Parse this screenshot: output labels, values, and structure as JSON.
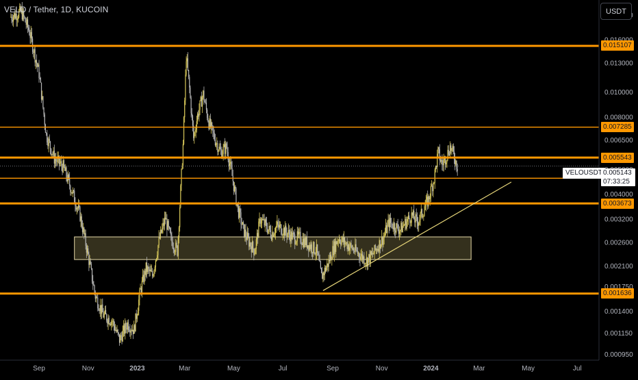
{
  "header": {
    "title": "VELO / Tether, 1D, KUCOIN"
  },
  "currency_button": {
    "label": "USDT"
  },
  "current_price": {
    "symbol": "VELOUSDT",
    "value": "0.005143",
    "countdown": "07:33:25"
  },
  "colors": {
    "background": "#000000",
    "candle_up": "#d9c95a",
    "candle_down": "#b7b7b7",
    "level": "#ff9800",
    "trendline": "#e8d77a",
    "zone_fill": "#3a3520",
    "zone_border": "#e6d9a8",
    "axis_text": "#b2b5be"
  },
  "chart_data": {
    "type": "candlestick",
    "title": "VELO / Tether, 1D, KUCOIN",
    "scale": "log",
    "ylim": [
      0.0009,
      0.0228
    ],
    "x_ticks": [
      "Sep",
      "Nov",
      "2023",
      "Mar",
      "May",
      "Jul",
      "Sep",
      "Nov",
      "2024",
      "Mar",
      "May",
      "Jul"
    ],
    "y_ticks": [
      "0.020000",
      "0.016000",
      "0.013000",
      "0.010000",
      "0.008000",
      "0.006500",
      "0.005000",
      "0.004000",
      "0.003200",
      "0.002600",
      "0.002100",
      "0.001750",
      "0.001400",
      "0.001150",
      "0.000950"
    ],
    "horizontal_levels": [
      {
        "label": "0.015107",
        "value": 0.015107,
        "weight": "thick"
      },
      {
        "label": "0.007285",
        "value": 0.007285,
        "weight": "thin"
      },
      {
        "label": "0.005543",
        "value": 0.005543,
        "weight": "thick"
      },
      {
        "label": "0.004605",
        "value": 0.004605,
        "weight": "thin"
      },
      {
        "label": "0.003673",
        "value": 0.003673,
        "weight": "thick"
      },
      {
        "label": "0.001636",
        "value": 0.001636,
        "weight": "thick"
      }
    ],
    "zone": {
      "x_start": "2022-10-15",
      "x_end": "2024-02-20",
      "y_low": 0.00222,
      "y_high": 0.00272
    },
    "trendline": {
      "x_start": "2023-08-20",
      "y_start": 0.00168,
      "x_end": "2024-04-10",
      "y_end": 0.00445
    },
    "price_path": [
      [
        "2022-07-28",
        0.0196
      ],
      [
        "2022-08-10",
        0.0205
      ],
      [
        "2022-08-20",
        0.0172
      ],
      [
        "2022-09-01",
        0.0118
      ],
      [
        "2022-09-10",
        0.0068
      ],
      [
        "2022-09-20",
        0.0055
      ],
      [
        "2022-10-01",
        0.0051
      ],
      [
        "2022-10-12",
        0.0041
      ],
      [
        "2022-10-22",
        0.0033
      ],
      [
        "2022-11-01",
        0.0023
      ],
      [
        "2022-11-10",
        0.0016
      ],
      [
        "2022-11-20",
        0.00135
      ],
      [
        "2022-12-01",
        0.00128
      ],
      [
        "2022-12-10",
        0.00108
      ],
      [
        "2022-12-20",
        0.00125
      ],
      [
        "2022-12-28",
        0.00118
      ],
      [
        "2023-01-05",
        0.00168
      ],
      [
        "2023-01-12",
        0.00205
      ],
      [
        "2023-01-20",
        0.00192
      ],
      [
        "2023-01-28",
        0.00262
      ],
      [
        "2023-02-05",
        0.00322
      ],
      [
        "2023-02-12",
        0.00265
      ],
      [
        "2023-02-20",
        0.0024
      ],
      [
        "2023-02-27",
        0.0062
      ],
      [
        "2023-03-03",
        0.0138
      ],
      [
        "2023-03-07",
        0.0103
      ],
      [
        "2023-03-12",
        0.0066
      ],
      [
        "2023-03-17",
        0.0081
      ],
      [
        "2023-03-24",
        0.0098
      ],
      [
        "2023-03-31",
        0.0076
      ],
      [
        "2023-04-08",
        0.0065
      ],
      [
        "2023-04-15",
        0.0058
      ],
      [
        "2023-04-22",
        0.0061
      ],
      [
        "2023-04-29",
        0.0047
      ],
      [
        "2023-05-06",
        0.0035
      ],
      [
        "2023-05-13",
        0.0029
      ],
      [
        "2023-05-20",
        0.0026
      ],
      [
        "2023-05-27",
        0.0024
      ],
      [
        "2023-06-03",
        0.0032
      ],
      [
        "2023-06-10",
        0.003
      ],
      [
        "2023-06-17",
        0.0028
      ],
      [
        "2023-06-24",
        0.003
      ],
      [
        "2023-07-01",
        0.0029
      ],
      [
        "2023-07-08",
        0.0028
      ],
      [
        "2023-07-15",
        0.0027
      ],
      [
        "2023-07-22",
        0.0027
      ],
      [
        "2023-07-29",
        0.0026
      ],
      [
        "2023-08-05",
        0.0025
      ],
      [
        "2023-08-12",
        0.0024
      ],
      [
        "2023-08-18",
        0.0019
      ],
      [
        "2023-08-25",
        0.0021
      ],
      [
        "2023-09-01",
        0.0024
      ],
      [
        "2023-09-08",
        0.0027
      ],
      [
        "2023-09-15",
        0.0026
      ],
      [
        "2023-09-22",
        0.0025
      ],
      [
        "2023-09-29",
        0.0024
      ],
      [
        "2023-10-06",
        0.0023
      ],
      [
        "2023-10-13",
        0.0022
      ],
      [
        "2023-10-20",
        0.0023
      ],
      [
        "2023-10-27",
        0.0025
      ],
      [
        "2023-11-03",
        0.0027
      ],
      [
        "2023-11-10",
        0.0031
      ],
      [
        "2023-11-17",
        0.003
      ],
      [
        "2023-11-24",
        0.0029
      ],
      [
        "2023-12-01",
        0.0031
      ],
      [
        "2023-12-08",
        0.0033
      ],
      [
        "2023-12-15",
        0.0031
      ],
      [
        "2023-12-22",
        0.0034
      ],
      [
        "2023-12-29",
        0.0038
      ],
      [
        "2024-01-05",
        0.0046
      ],
      [
        "2024-01-10",
        0.0058
      ],
      [
        "2024-01-15",
        0.0052
      ],
      [
        "2024-01-20",
        0.0056
      ],
      [
        "2024-01-25",
        0.0061
      ],
      [
        "2024-01-30",
        0.0056
      ],
      [
        "2024-02-03",
        0.0051
      ]
    ]
  }
}
